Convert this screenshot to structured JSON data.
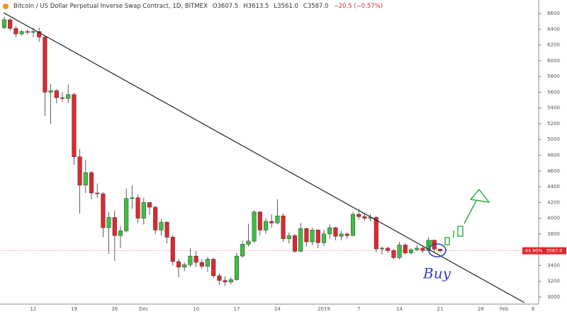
{
  "chart_data": {
    "type": "candlestick",
    "title": "Bitcoin / US Dollar Perpetual Inverse Swap Contract, 1D, BITMEX",
    "ohlc_readout": [
      "O3607.5",
      "H3613.5",
      "L3561.0",
      "C3587.0",
      "−20.5 (−0.57%)"
    ],
    "price_tag": {
      "change": "-44.90%",
      "price": "3587.0"
    },
    "annotations": [
      "Buy"
    ],
    "categories": [
      null,
      null,
      null,
      null,
      null,
      "12",
      null,
      null,
      null,
      null,
      null,
      null,
      "19",
      null,
      null,
      null,
      null,
      null,
      null,
      "26",
      null,
      null,
      null,
      null,
      "Dec",
      null,
      null,
      null,
      null,
      null,
      null,
      null,
      null,
      "10",
      null,
      null,
      null,
      null,
      null,
      null,
      "17",
      null,
      null,
      null,
      null,
      null,
      null,
      "24",
      null,
      null,
      null,
      null,
      null,
      null,
      null,
      "2019",
      null,
      null,
      null,
      null,
      null,
      "7",
      null,
      null,
      null,
      null,
      null,
      null,
      "14",
      null,
      null,
      null,
      null,
      null,
      null,
      "21",
      null,
      null,
      null,
      null,
      null,
      null,
      "28",
      null,
      null,
      null,
      "Feb",
      null,
      null,
      null,
      null,
      "6"
    ],
    "open": [
      6420,
      6520,
      6410,
      6340,
      6370,
      6360,
      6370,
      6300,
      5600,
      5620,
      5530,
      5520,
      5570,
      4780,
      4420,
      4580,
      4320,
      4310,
      3880,
      4010,
      3780,
      3840,
      4250,
      4260,
      4000,
      4200,
      4140,
      3850,
      3950,
      3760,
      3450,
      3380,
      3410,
      3520,
      3440,
      3390,
      3480,
      3270,
      3210,
      3190,
      3220,
      3520,
      3670,
      3710,
      4080,
      3850,
      3960,
      3940,
      4030,
      3740,
      3780,
      3580,
      3870,
      3700,
      3850,
      3690,
      3800,
      3880,
      3770,
      3800,
      3780,
      4050,
      4020,
      4000,
      4010,
      3610,
      3620,
      3590,
      3500,
      3660,
      3560,
      3600,
      3620,
      3590,
      3720,
      3607.5,
      null,
      null,
      null,
      null,
      null,
      null,
      null,
      null,
      null,
      null,
      null,
      null,
      null,
      null,
      null,
      null
    ],
    "high": [
      6560,
      6540,
      6440,
      6390,
      6400,
      6420,
      6420,
      6320,
      5700,
      5640,
      5600,
      5700,
      5590,
      4880,
      4740,
      4600,
      4440,
      4330,
      4080,
      4100,
      3900,
      4380,
      4420,
      4300,
      4260,
      4200,
      4160,
      3990,
      3960,
      3790,
      3480,
      3440,
      3620,
      3580,
      3480,
      3510,
      3500,
      3300,
      3260,
      3250,
      3560,
      3710,
      3930,
      4100,
      4090,
      4000,
      4050,
      4240,
      4060,
      3820,
      3800,
      3940,
      3880,
      3880,
      3860,
      3850,
      3920,
      3890,
      3840,
      3820,
      4080,
      4120,
      4070,
      4050,
      4030,
      3640,
      3640,
      3610,
      3700,
      3680,
      3620,
      3660,
      3640,
      3760,
      3730,
      3613.5,
      null,
      null,
      null,
      null,
      null,
      null,
      null,
      null,
      null,
      null,
      null,
      null,
      null,
      null,
      null,
      null
    ],
    "low": [
      6400,
      6380,
      6300,
      6320,
      6330,
      6300,
      6240,
      5300,
      5200,
      5460,
      5480,
      5460,
      4680,
      4060,
      4320,
      4240,
      4260,
      3760,
      3550,
      3460,
      3620,
      3820,
      4120,
      3940,
      3920,
      4040,
      3800,
      3780,
      3680,
      3400,
      3250,
      3330,
      3380,
      3380,
      3360,
      3320,
      3240,
      3150,
      3140,
      3160,
      3210,
      3500,
      3640,
      3690,
      3780,
      3800,
      3880,
      3920,
      3700,
      3680,
      3560,
      3570,
      3640,
      3660,
      3620,
      3650,
      3740,
      3720,
      3720,
      3740,
      3770,
      3980,
      3970,
      3960,
      3570,
      3540,
      3560,
      3480,
      3480,
      3540,
      3540,
      3580,
      3560,
      3580,
      3560,
      3561,
      null,
      null,
      null,
      null,
      null,
      null,
      null,
      null,
      null,
      null,
      null,
      null,
      null,
      null,
      null,
      null
    ],
    "close": [
      6520,
      6410,
      6340,
      6370,
      6360,
      6370,
      6300,
      5600,
      5620,
      5530,
      5520,
      5570,
      4780,
      4420,
      4580,
      4320,
      4310,
      3880,
      4010,
      3780,
      3840,
      4250,
      4260,
      4000,
      4200,
      4140,
      3850,
      3950,
      3760,
      3450,
      3380,
      3410,
      3520,
      3440,
      3390,
      3480,
      3270,
      3210,
      3190,
      3220,
      3520,
      3670,
      3710,
      4080,
      3850,
      3960,
      3940,
      4030,
      3740,
      3780,
      3580,
      3870,
      3700,
      3850,
      3690,
      3800,
      3880,
      3770,
      3800,
      3780,
      4050,
      4020,
      4000,
      4010,
      3610,
      3620,
      3590,
      3500,
      3660,
      3560,
      3600,
      3620,
      3590,
      3720,
      3607.5,
      3587,
      null,
      null,
      null,
      null,
      null,
      null,
      null,
      null,
      null,
      null,
      null,
      null,
      null,
      null,
      null,
      null
    ],
    "colors": {
      "up": "#3fbf3f",
      "down": "#e0282e"
    },
    "ylim": [
      2910,
      6726
    ],
    "yticks": [
      3000,
      3200,
      3400,
      3600,
      3800,
      4000,
      4200,
      4400,
      4600,
      4800,
      5000,
      5200,
      5400,
      5600,
      5800,
      6000,
      6200,
      6400,
      6600
    ],
    "grid": false
  }
}
